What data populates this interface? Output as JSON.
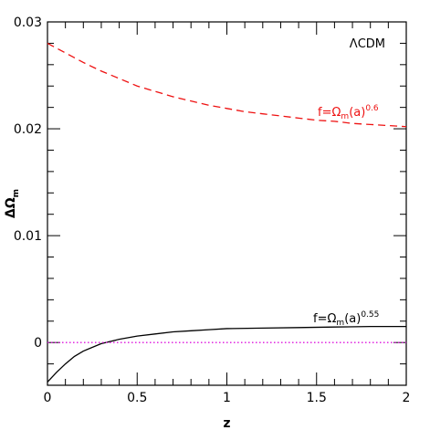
{
  "chart_data": {
    "type": "line",
    "xlabel": "z",
    "ylabel": "ΔΩ",
    "ylabel_sub": "m",
    "xlim": [
      0,
      2
    ],
    "ylim": [
      -0.004,
      0.03
    ],
    "x_ticks": [
      0,
      0.5,
      1,
      1.5,
      2
    ],
    "x_tick_labels": [
      "0",
      "0.5",
      "1",
      "1.5",
      "2"
    ],
    "y_ticks": [
      0,
      0.01,
      0.02,
      0.03
    ],
    "y_tick_labels": [
      "0",
      "0.01",
      "0.02",
      "0.03"
    ],
    "grid": false,
    "annotations": {
      "model": "ΛCDM",
      "red_label_main": "f=Ω",
      "red_label_sub": "m",
      "red_label_tail": "(a)",
      "red_label_exp": "0.6",
      "black_label_main": "f=Ω",
      "black_label_sub": "m",
      "black_label_tail": "(a)",
      "black_label_exp": "0.55"
    },
    "series": [
      {
        "color": "#ee1111",
        "style": "dashed",
        "x": [
          0,
          0.1,
          0.2,
          0.3,
          0.4,
          0.5,
          0.6,
          0.7,
          0.8,
          0.9,
          1.0,
          1.1,
          1.2,
          1.3,
          1.4,
          1.5,
          1.6,
          1.7,
          1.8,
          1.9,
          2.0
        ],
        "y": [
          0.028,
          0.0271,
          0.0262,
          0.0254,
          0.0247,
          0.024,
          0.0235,
          0.023,
          0.0226,
          0.0222,
          0.0219,
          0.0216,
          0.0214,
          0.0212,
          0.021,
          0.0208,
          0.0207,
          0.0205,
          0.0204,
          0.0203,
          0.0202
        ]
      },
      {
        "color": "#000000",
        "style": "solid",
        "x": [
          0,
          0.05,
          0.1,
          0.15,
          0.2,
          0.3,
          0.4,
          0.5,
          0.6,
          0.7,
          0.8,
          0.9,
          1.0,
          1.2,
          1.4,
          1.6,
          1.8,
          2.0
        ],
        "y": [
          -0.0037,
          -0.0028,
          -0.002,
          -0.0013,
          -0.0008,
          -0.0001,
          0.0003,
          0.0006,
          0.0008,
          0.001,
          0.0011,
          0.0012,
          0.0013,
          0.00135,
          0.0014,
          0.00145,
          0.0015,
          0.0015
        ]
      },
      {
        "color": "#dd11dd",
        "style": "dotted",
        "x": [
          0,
          2
        ],
        "y": [
          0,
          0
        ]
      }
    ]
  }
}
